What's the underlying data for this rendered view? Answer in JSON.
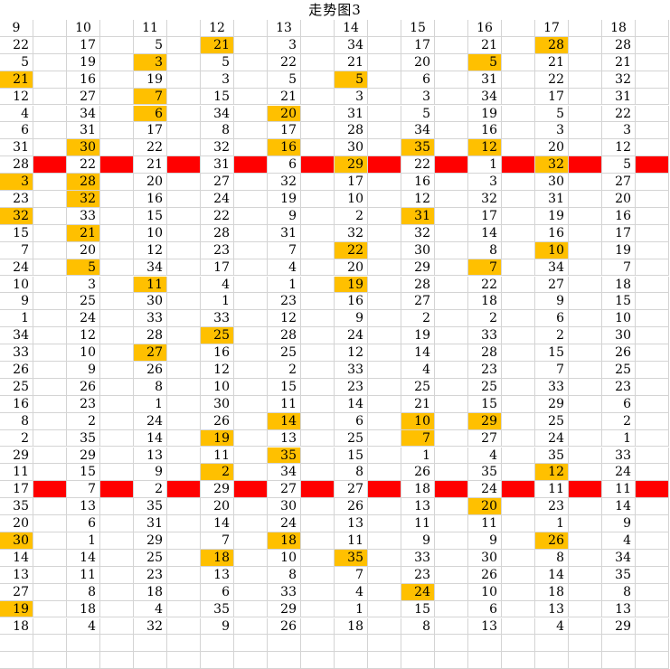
{
  "title": "走势图3",
  "colors": {
    "highlight": "#ffc000",
    "separator": "#ff0000",
    "grid": "#d4d4d4"
  },
  "headers": [
    "9",
    "10",
    "11",
    "12",
    "13",
    "14",
    "15",
    "16",
    "17",
    "18"
  ],
  "rows": [
    [
      22,
      17,
      5,
      21,
      3,
      34,
      17,
      21,
      28,
      28
    ],
    [
      5,
      19,
      3,
      5,
      22,
      21,
      20,
      5,
      21,
      21
    ],
    [
      21,
      16,
      19,
      3,
      5,
      5,
      6,
      31,
      22,
      32
    ],
    [
      12,
      27,
      7,
      15,
      21,
      3,
      3,
      34,
      17,
      31
    ],
    [
      4,
      34,
      6,
      34,
      20,
      31,
      5,
      19,
      5,
      22
    ],
    [
      6,
      31,
      17,
      8,
      17,
      28,
      34,
      16,
      3,
      3
    ],
    [
      31,
      30,
      22,
      32,
      16,
      30,
      35,
      12,
      20,
      12
    ],
    [
      28,
      22,
      21,
      31,
      6,
      29,
      22,
      1,
      32,
      5
    ],
    [
      3,
      28,
      20,
      27,
      32,
      17,
      16,
      3,
      30,
      27
    ],
    [
      23,
      32,
      16,
      24,
      19,
      10,
      12,
      32,
      31,
      20
    ],
    [
      32,
      33,
      15,
      22,
      9,
      2,
      31,
      17,
      19,
      16
    ],
    [
      15,
      21,
      10,
      28,
      31,
      32,
      32,
      14,
      16,
      17
    ],
    [
      7,
      20,
      12,
      23,
      7,
      22,
      30,
      8,
      10,
      19
    ],
    [
      24,
      5,
      34,
      17,
      4,
      20,
      29,
      7,
      34,
      7
    ],
    [
      10,
      3,
      11,
      4,
      1,
      19,
      28,
      22,
      27,
      18
    ],
    [
      9,
      25,
      30,
      1,
      23,
      16,
      27,
      18,
      9,
      15
    ],
    [
      1,
      24,
      33,
      33,
      12,
      9,
      2,
      2,
      6,
      10
    ],
    [
      34,
      12,
      28,
      25,
      28,
      24,
      19,
      33,
      2,
      30
    ],
    [
      33,
      10,
      27,
      16,
      25,
      12,
      14,
      28,
      15,
      26
    ],
    [
      26,
      9,
      26,
      12,
      2,
      33,
      4,
      23,
      7,
      25
    ],
    [
      25,
      26,
      8,
      10,
      15,
      23,
      25,
      25,
      33,
      23
    ],
    [
      16,
      23,
      1,
      30,
      11,
      14,
      21,
      15,
      29,
      6
    ],
    [
      8,
      2,
      24,
      26,
      14,
      6,
      10,
      29,
      25,
      2
    ],
    [
      2,
      35,
      14,
      19,
      13,
      25,
      7,
      27,
      24,
      1
    ],
    [
      29,
      29,
      13,
      11,
      35,
      15,
      1,
      4,
      35,
      33
    ],
    [
      11,
      15,
      9,
      2,
      34,
      8,
      26,
      35,
      12,
      24
    ],
    [
      17,
      7,
      2,
      29,
      27,
      27,
      18,
      24,
      11,
      11
    ],
    [
      35,
      13,
      35,
      20,
      30,
      26,
      13,
      20,
      23,
      14
    ],
    [
      20,
      6,
      31,
      14,
      24,
      13,
      11,
      11,
      1,
      9
    ],
    [
      30,
      1,
      29,
      7,
      18,
      11,
      9,
      9,
      26,
      4
    ],
    [
      14,
      14,
      25,
      18,
      10,
      35,
      33,
      30,
      8,
      34
    ],
    [
      13,
      11,
      23,
      13,
      8,
      7,
      23,
      26,
      14,
      35
    ],
    [
      27,
      8,
      18,
      6,
      33,
      4,
      24,
      10,
      18,
      8
    ],
    [
      19,
      18,
      4,
      35,
      29,
      1,
      15,
      6,
      13,
      13
    ],
    [
      18,
      4,
      32,
      9,
      26,
      18,
      8,
      13,
      4,
      29
    ]
  ],
  "highlights": [
    [
      0,
      3
    ],
    [
      0,
      8
    ],
    [
      1,
      2
    ],
    [
      1,
      7
    ],
    [
      2,
      0
    ],
    [
      2,
      5
    ],
    [
      3,
      2
    ],
    [
      4,
      2
    ],
    [
      4,
      4
    ],
    [
      6,
      1
    ],
    [
      6,
      4
    ],
    [
      6,
      6
    ],
    [
      6,
      7
    ],
    [
      7,
      5
    ],
    [
      7,
      8
    ],
    [
      8,
      0
    ],
    [
      8,
      1
    ],
    [
      9,
      1
    ],
    [
      10,
      0
    ],
    [
      10,
      6
    ],
    [
      11,
      1
    ],
    [
      12,
      5
    ],
    [
      12,
      8
    ],
    [
      13,
      1
    ],
    [
      13,
      7
    ],
    [
      14,
      2
    ],
    [
      14,
      5
    ],
    [
      17,
      3
    ],
    [
      18,
      2
    ],
    [
      22,
      4
    ],
    [
      22,
      6
    ],
    [
      22,
      7
    ],
    [
      23,
      3
    ],
    [
      23,
      6
    ],
    [
      24,
      4
    ],
    [
      25,
      3
    ],
    [
      25,
      8
    ],
    [
      27,
      7
    ],
    [
      29,
      0
    ],
    [
      29,
      4
    ],
    [
      29,
      8
    ],
    [
      30,
      3
    ],
    [
      30,
      5
    ],
    [
      32,
      6
    ],
    [
      33,
      0
    ]
  ],
  "separator_rows": [
    7,
    26
  ]
}
